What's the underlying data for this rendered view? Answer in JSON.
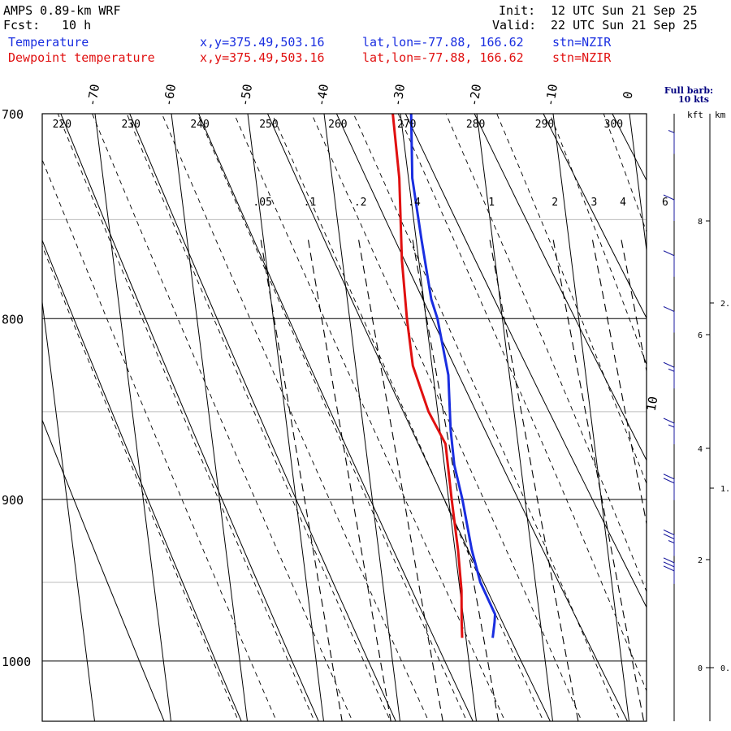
{
  "header": {
    "title": "AMPS 0.89-km WRF",
    "fcst_label": "Fcst:",
    "fcst_value": "10 h",
    "init_label": "Init:",
    "init_value": "12 UTC Sun 21 Sep 25",
    "valid_label": "Valid:",
    "valid_value": "22 UTC Sun 21 Sep 25"
  },
  "legend": {
    "temperature": {
      "label": "Temperature",
      "xy": "x,y=375.49,503.16",
      "latlon": "lat,lon=-77.88, 166.62",
      "stn": "stn=NZIR",
      "color": "#1a2ee0"
    },
    "dewpoint": {
      "label": "Dewpoint temperature",
      "xy": "x,y=375.49,503.16",
      "latlon": "lat,lon=-77.88, 166.62",
      "stn": "stn=NZIR",
      "color": "#e01010"
    }
  },
  "wind_panel": {
    "title_line1": "Full barb:",
    "title_line2": "10 kts",
    "kft_label": "kft",
    "km_label": "km",
    "kft_ticks": [
      "8",
      "6",
      "4",
      "2",
      "0"
    ],
    "km_ticks": [
      "2.",
      "1.",
      "0."
    ]
  },
  "chart_data": {
    "type": "skew-t",
    "pressure_range": [
      700,
      1040
    ],
    "pressure_labels": [
      "700",
      "800",
      "900",
      "1000"
    ],
    "isotherm_labels": [
      "-70",
      "-60",
      "-50",
      "-40",
      "-30",
      "-20",
      "-10",
      "0",
      "10"
    ],
    "theta_labels": [
      "220",
      "230",
      "240",
      "250",
      "260",
      "270",
      "280",
      "290",
      "300"
    ],
    "mixing_ratio_labels": [
      ".05",
      ".1",
      ".2",
      ".4",
      "1",
      "2",
      "3",
      "4",
      "6"
    ],
    "series": [
      {
        "name": "Temperature",
        "color": "#1a2ee0",
        "points": [
          [
            700,
            -28.6
          ],
          [
            730,
            -29.5
          ],
          [
            760,
            -29.3
          ],
          [
            790,
            -29.0
          ],
          [
            800,
            -28.5
          ],
          [
            830,
            -28.0
          ],
          [
            860,
            -28.6
          ],
          [
            880,
            -28.7
          ],
          [
            900,
            -28.2
          ],
          [
            930,
            -27.8
          ],
          [
            950,
            -27.2
          ],
          [
            970,
            -25.8
          ],
          [
            975,
            -26.0
          ],
          [
            985,
            -26.5
          ]
        ]
      },
      {
        "name": "Dewpoint temperature",
        "color": "#e01010",
        "points": [
          [
            700,
            -31.0
          ],
          [
            730,
            -31.2
          ],
          [
            770,
            -32.2
          ],
          [
            800,
            -32.5
          ],
          [
            825,
            -32.5
          ],
          [
            850,
            -31.2
          ],
          [
            868,
            -29.5
          ],
          [
            900,
            -29.6
          ],
          [
            930,
            -29.6
          ],
          [
            955,
            -29.8
          ],
          [
            975,
            -30.3
          ],
          [
            985,
            -30.5
          ]
        ]
      }
    ],
    "wind_barbs": [
      {
        "height_kft": 9.2,
        "speed_kt": 5
      },
      {
        "height_kft": 8.0,
        "speed_kt": 10
      },
      {
        "height_kft": 7.0,
        "speed_kt": 10
      },
      {
        "height_kft": 6.0,
        "speed_kt": 10
      },
      {
        "height_kft": 5.0,
        "speed_kt": 15
      },
      {
        "height_kft": 4.0,
        "speed_kt": 15
      },
      {
        "height_kft": 3.0,
        "speed_kt": 20
      },
      {
        "height_kft": 2.0,
        "speed_kt": 25
      },
      {
        "height_kft": 1.5,
        "speed_kt": 30
      }
    ]
  }
}
